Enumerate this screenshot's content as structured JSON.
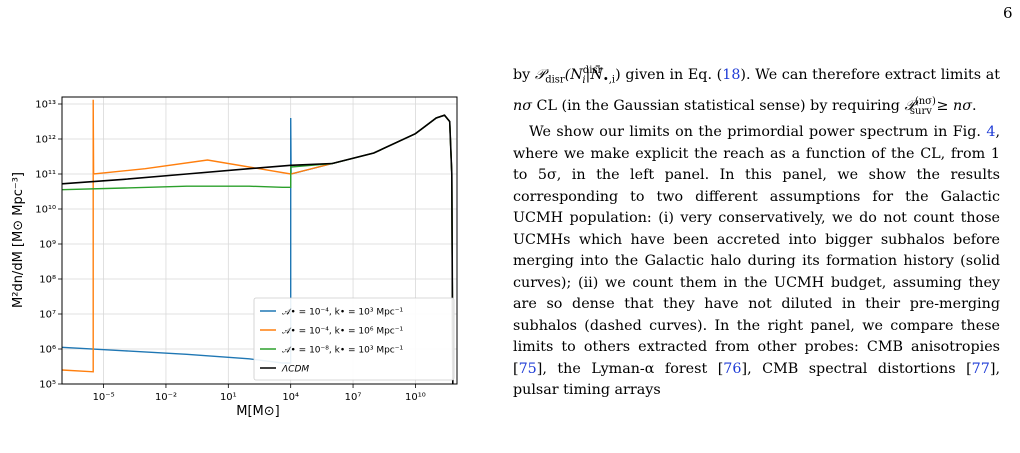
{
  "page": {
    "number": "6"
  },
  "figure": {
    "colors": {
      "series1": "#1f77b4",
      "series2": "#ff7f0e",
      "series3": "#2ca02c",
      "lcdm": "#000000"
    },
    "chart_data": {
      "type": "line",
      "xlabel": "M[M⊙]",
      "ylabel": "M²dn/dM [M⊙ Mpc⁻³]",
      "x_scale": "log",
      "y_scale": "log",
      "xlim_log10": [
        -7,
        12
      ],
      "ylim_log10": [
        5,
        13.2
      ],
      "x_ticks": [
        {
          "log": -5,
          "label": "10⁻⁵"
        },
        {
          "log": -2,
          "label": "10⁻²"
        },
        {
          "log": 1,
          "label": "10¹"
        },
        {
          "log": 4,
          "label": "10⁴"
        },
        {
          "log": 7,
          "label": "10⁷"
        },
        {
          "log": 10,
          "label": "10¹⁰"
        }
      ],
      "y_ticks": [
        {
          "log": 5,
          "label": "10⁵"
        },
        {
          "log": 6,
          "label": "10⁶"
        },
        {
          "log": 7,
          "label": "10⁷"
        },
        {
          "log": 8,
          "label": "10⁸"
        },
        {
          "log": 9,
          "label": "10⁹"
        },
        {
          "log": 10,
          "label": "10¹⁰"
        },
        {
          "log": 11,
          "label": "10¹¹"
        },
        {
          "log": 12,
          "label": "10¹²"
        },
        {
          "log": 13,
          "label": "10¹³"
        }
      ],
      "grid": true,
      "legend_position": "bottom-right",
      "series": [
        {
          "name": "𝒜• = 10⁻⁴, k• = 10³ Mpc⁻¹",
          "color_key": "series1",
          "log_points": [
            [
              -7,
              6.05
            ],
            [
              -4,
              5.95
            ],
            [
              -1,
              5.85
            ],
            [
              2,
              5.72
            ],
            [
              3.6,
              5.6
            ],
            [
              4.0,
              5.6
            ],
            [
              4.0,
              12.6
            ],
            [
              4.02,
              11.0
            ],
            [
              6,
              11.3
            ],
            [
              8,
              11.6
            ],
            [
              10,
              12.15
            ],
            [
              11,
              12.6
            ],
            [
              11.4,
              12.68
            ],
            [
              11.65,
              12.5
            ],
            [
              11.75,
              11.0
            ],
            [
              11.8,
              5.0
            ]
          ]
        },
        {
          "name": "𝒜• = 10⁻⁴, k• = 10⁶ Mpc⁻¹",
          "color_key": "series2",
          "log_points": [
            [
              -7,
              5.4
            ],
            [
              -5.5,
              5.35
            ],
            [
              -5.5,
              13.12
            ],
            [
              -5.48,
              11.0
            ],
            [
              -3,
              11.15
            ],
            [
              0,
              11.4
            ],
            [
              4,
              11.0
            ],
            [
              6,
              11.3
            ],
            [
              8,
              11.6
            ],
            [
              10,
              12.15
            ],
            [
              11,
              12.6
            ],
            [
              11.4,
              12.68
            ],
            [
              11.65,
              12.5
            ],
            [
              11.75,
              11.0
            ],
            [
              11.8,
              5.0
            ]
          ]
        },
        {
          "name": "𝒜• = 10⁻⁸, k• = 10³ Mpc⁻¹",
          "color_key": "series3",
          "log_points": [
            [
              -7,
              10.55
            ],
            [
              -4,
              10.6
            ],
            [
              -1,
              10.65
            ],
            [
              2,
              10.65
            ],
            [
              3.6,
              10.62
            ],
            [
              4.0,
              10.62
            ],
            [
              4.0,
              11.2
            ],
            [
              6,
              11.3
            ],
            [
              8,
              11.6
            ],
            [
              10,
              12.15
            ],
            [
              11,
              12.6
            ],
            [
              11.4,
              12.68
            ],
            [
              11.65,
              12.5
            ],
            [
              11.75,
              11.0
            ],
            [
              11.8,
              5.0
            ]
          ]
        },
        {
          "name": "ΛCDM",
          "color_key": "lcdm",
          "log_points": [
            [
              -7,
              10.72
            ],
            [
              -4,
              10.85
            ],
            [
              -1,
              11.0
            ],
            [
              2,
              11.15
            ],
            [
              4,
              11.25
            ],
            [
              6,
              11.3
            ],
            [
              8,
              11.6
            ],
            [
              10,
              12.15
            ],
            [
              11,
              12.6
            ],
            [
              11.4,
              12.68
            ],
            [
              11.65,
              12.5
            ],
            [
              11.75,
              11.0
            ],
            [
              11.8,
              5.0
            ]
          ]
        }
      ]
    }
  },
  "text": {
    "p1_a": "by ",
    "p1_math1": "𝒫",
    "p1_math1_sub": "disr",
    "p1_math2": "(N",
    "p1_math2_sup": "disr",
    "p1_math2_sub": "i",
    "p1_math3": "|N̄",
    "p1_math3_sub": "•,i",
    "p1_math4": ")",
    "p1_b": " given in Eq. (",
    "p1_ref": "18",
    "p1_c": "). We can therefore extract limits at ",
    "p1_nsigma": "nσ",
    "p1_d": " CL (in the Gaussian statistical sense) by requiring ",
    "p1_math5": "𝒫",
    "p1_math5_sup": "(nσ)",
    "p1_math5_sub": "surv",
    "p1_e": " ≥ ",
    "p1_nsigma2": "nσ",
    "p1_f": ".",
    "p2_a": "We show our limits on the primordial power spectrum in Fig. ",
    "p2_fig": "4",
    "p2_b": ", where we make explicit the reach as a function of the CL, from 1 to 5σ, in the left panel. In this panel, we show the results corresponding to two different assumptions for the Galactic UCMH population: (i) very conservatively, we do not count those UCMHs which have been accreted into bigger subhalos before merging into the Galactic halo during its formation history (solid curves); (ii) we count them in the UCMH budget, assuming they are so dense that they have not diluted in their pre-merging subhalos (dashed curves). In the right panel, we compare these limits to others extracted from other probes: CMB anisotropies [",
    "p2_c75": "75",
    "p2_c": "], the Lyman-α forest [",
    "p2_c76": "76",
    "p2_d": "], CMB spectral distortions [",
    "p2_c77": "77",
    "p2_e": "], pulsar timing arrays"
  }
}
